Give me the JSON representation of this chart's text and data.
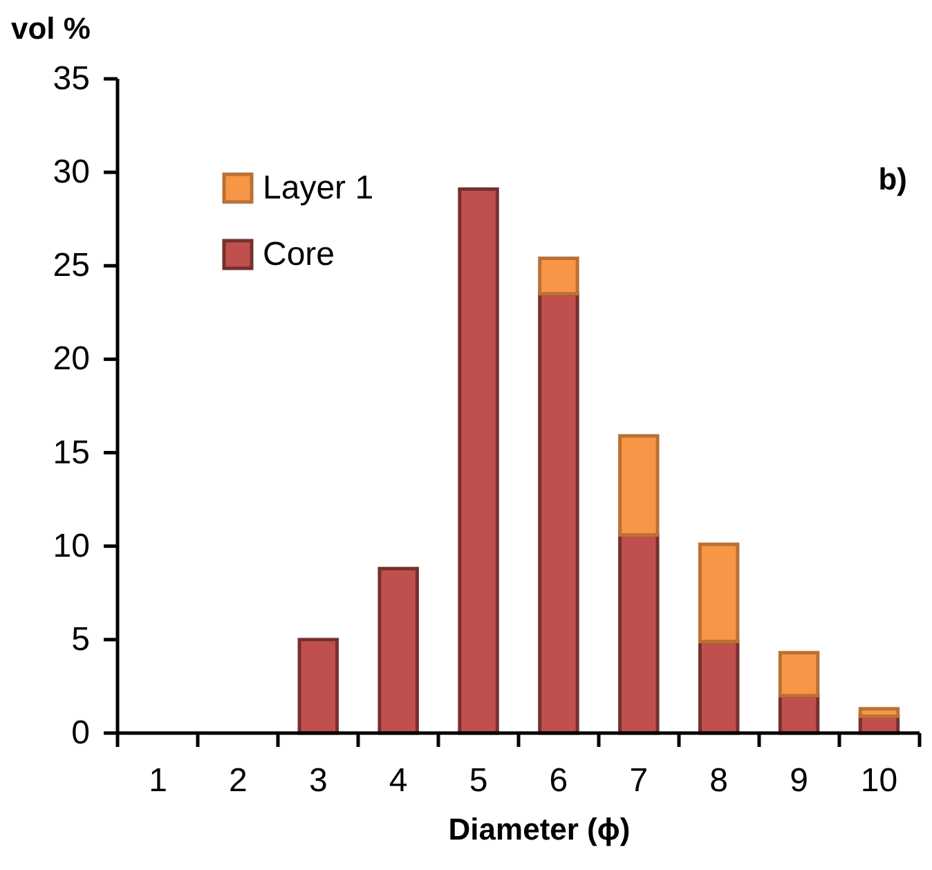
{
  "chart_data": {
    "type": "bar",
    "stacked": true,
    "xlabel": "Diameter (ϕ)",
    "ylabel": "vol %",
    "annotations": [
      "b)"
    ],
    "categories": [
      "1",
      "2",
      "3",
      "4",
      "5",
      "6",
      "7",
      "8",
      "9",
      "10"
    ],
    "series": [
      {
        "name": "Core",
        "color": "#c0504d",
        "values": [
          0,
          0,
          5.0,
          8.8,
          29.1,
          23.5,
          10.6,
          4.9,
          2.0,
          0.9
        ]
      },
      {
        "name": "Layer 1",
        "color": "#f79646",
        "values": [
          0,
          0,
          0,
          0,
          0,
          1.9,
          5.3,
          5.2,
          2.3,
          0.4
        ]
      }
    ],
    "ylim": [
      0,
      35
    ],
    "yticks": [
      0,
      5,
      10,
      15,
      20,
      25,
      30,
      35
    ],
    "legend": "top left"
  }
}
